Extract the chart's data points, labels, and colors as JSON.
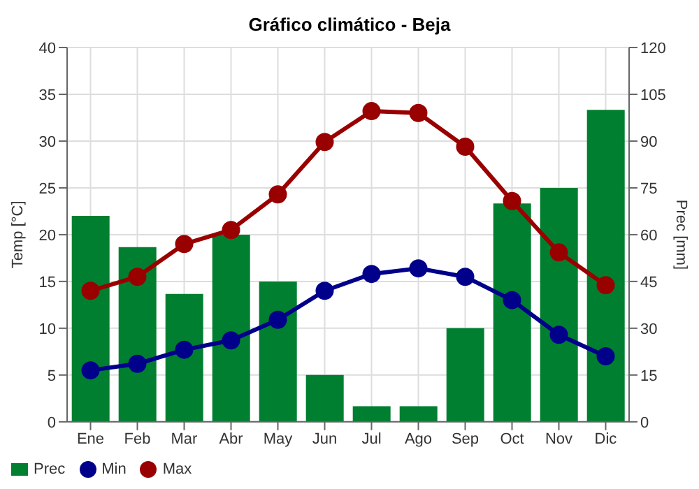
{
  "chart_data": {
    "type": "line",
    "title": "Gráfico climático - Beja",
    "categories": [
      "Ene",
      "Feb",
      "Mar",
      "Abr",
      "May",
      "Jun",
      "Jul",
      "Ago",
      "Sep",
      "Oct",
      "Nov",
      "Dic"
    ],
    "series": [
      {
        "name": "Prec",
        "type": "bar",
        "axis": "y2",
        "color": "#007f30",
        "values": [
          66,
          56,
          41,
          60,
          45,
          15,
          5,
          5,
          30,
          70,
          75,
          100
        ]
      },
      {
        "name": "Min",
        "color": "#00008b",
        "values": [
          5.5,
          6.2,
          7.7,
          8.7,
          10.9,
          14.0,
          15.8,
          16.4,
          15.5,
          13.0,
          9.3,
          7.0
        ]
      },
      {
        "name": "Max",
        "color": "#990000",
        "values": [
          14.0,
          15.5,
          19.0,
          20.5,
          24.3,
          29.9,
          33.2,
          33.0,
          29.4,
          23.6,
          18.1,
          14.6
        ]
      }
    ],
    "ylabel": "Temp [°C]",
    "y2label": "Prec [mm]",
    "ylim": [
      0,
      40
    ],
    "yticks": [
      0,
      5,
      10,
      15,
      20,
      25,
      30,
      35,
      40
    ],
    "y2lim": [
      0,
      120
    ],
    "y2ticks": [
      0,
      15,
      30,
      45,
      60,
      75,
      90,
      105,
      120
    ],
    "grid": true,
    "legend": "bottom left",
    "marker": "circle",
    "line_style": "solid"
  }
}
